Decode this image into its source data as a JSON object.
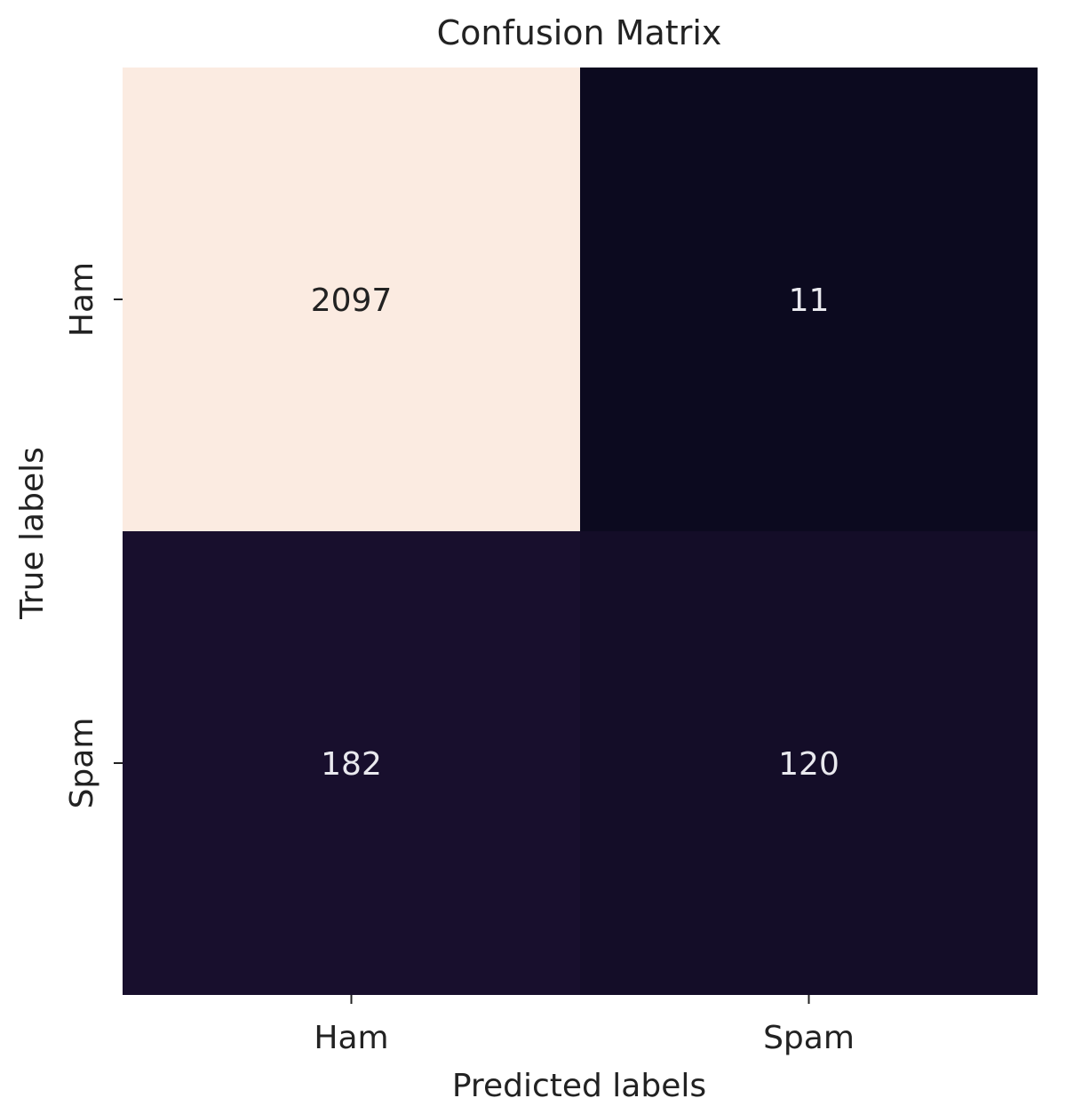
{
  "chart_data": {
    "type": "heatmap",
    "title": "Confusion Matrix",
    "xlabel": "Predicted labels",
    "ylabel": "True labels",
    "x_categories": [
      "Ham",
      "Spam"
    ],
    "y_categories": [
      "Ham",
      "Spam"
    ],
    "values": [
      [
        2097,
        11
      ],
      [
        182,
        120
      ]
    ],
    "colorbar": false,
    "colormap": "rocket",
    "colors": {
      "low": "#0c0a1f",
      "mid": "#1e1233",
      "high": "#fbebe1",
      "annotation_text": "#e9e9ee",
      "annotation_text_on_light": "#222222",
      "axis_text": "#222222"
    }
  }
}
